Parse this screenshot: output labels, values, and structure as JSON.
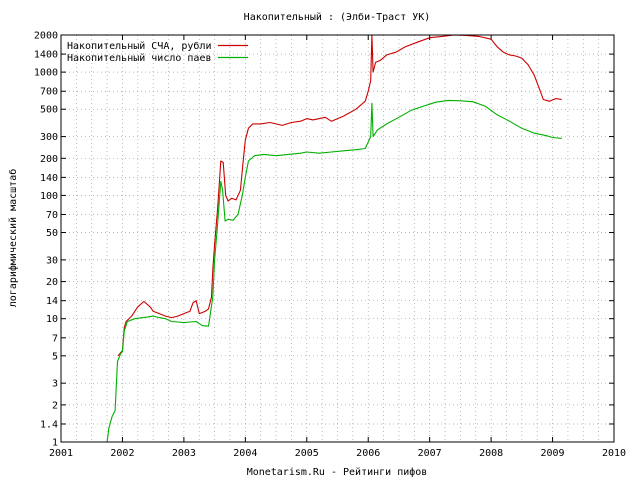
{
  "chart_data": {
    "type": "line",
    "title": "Накопительный : (Элби-Траст УК)",
    "xlabel": "Monetarism.Ru - Рейтинги пифов",
    "ylabel": "логарифмический масштаб",
    "y_scale": "log",
    "xlim": [
      2001,
      2010
    ],
    "ylim": [
      1,
      2000
    ],
    "grid": true,
    "legend_position": "top-left",
    "x_ticks": [
      "2001",
      "2002",
      "2003",
      "2004",
      "2005",
      "2006",
      "2007",
      "2008",
      "2009",
      "2010"
    ],
    "y_ticks": [
      1,
      1.4,
      2,
      3,
      5,
      7,
      10,
      14,
      20,
      30,
      50,
      70,
      100,
      140,
      200,
      300,
      500,
      700,
      1000,
      1400,
      2000
    ],
    "series": [
      {
        "name": "Накопительный СЧА, рубли",
        "color": "#cc0000",
        "points": [
          [
            2001.93,
            5
          ],
          [
            2001.97,
            5.3
          ],
          [
            2002.0,
            5.5
          ],
          [
            2002.03,
            8.5
          ],
          [
            2002.06,
            9.5
          ],
          [
            2002.15,
            10.5
          ],
          [
            2002.25,
            12.5
          ],
          [
            2002.35,
            13.8
          ],
          [
            2002.45,
            12.5
          ],
          [
            2002.5,
            11.5
          ],
          [
            2002.6,
            11
          ],
          [
            2002.7,
            10.5
          ],
          [
            2002.8,
            10.2
          ],
          [
            2002.9,
            10.5
          ],
          [
            2003.0,
            11
          ],
          [
            2003.1,
            11.5
          ],
          [
            2003.15,
            13.5
          ],
          [
            2003.2,
            14
          ],
          [
            2003.25,
            11
          ],
          [
            2003.35,
            11.5
          ],
          [
            2003.4,
            12
          ],
          [
            2003.45,
            15
          ],
          [
            2003.47,
            25
          ],
          [
            2003.5,
            40
          ],
          [
            2003.55,
            80
          ],
          [
            2003.6,
            190
          ],
          [
            2003.64,
            185
          ],
          [
            2003.68,
            100
          ],
          [
            2003.72,
            90
          ],
          [
            2003.78,
            95
          ],
          [
            2003.85,
            92
          ],
          [
            2003.92,
            110
          ],
          [
            2003.96,
            180
          ],
          [
            2004.0,
            280
          ],
          [
            2004.05,
            350
          ],
          [
            2004.12,
            380
          ],
          [
            2004.25,
            380
          ],
          [
            2004.4,
            390
          ],
          [
            2004.6,
            370
          ],
          [
            2004.75,
            390
          ],
          [
            2004.9,
            400
          ],
          [
            2005.0,
            420
          ],
          [
            2005.1,
            410
          ],
          [
            2005.3,
            430
          ],
          [
            2005.4,
            400
          ],
          [
            2005.6,
            440
          ],
          [
            2005.8,
            500
          ],
          [
            2005.95,
            580
          ],
          [
            2006.0,
            700
          ],
          [
            2006.04,
            850
          ],
          [
            2006.06,
            2000
          ],
          [
            2006.08,
            1000
          ],
          [
            2006.12,
            1200
          ],
          [
            2006.2,
            1250
          ],
          [
            2006.3,
            1380
          ],
          [
            2006.45,
            1450
          ],
          [
            2006.6,
            1600
          ],
          [
            2006.8,
            1750
          ],
          [
            2007.0,
            1900
          ],
          [
            2007.2,
            1950
          ],
          [
            2007.4,
            2000
          ],
          [
            2007.6,
            1980
          ],
          [
            2007.8,
            1950
          ],
          [
            2008.0,
            1850
          ],
          [
            2008.1,
            1600
          ],
          [
            2008.2,
            1450
          ],
          [
            2008.3,
            1380
          ],
          [
            2008.4,
            1350
          ],
          [
            2008.5,
            1300
          ],
          [
            2008.6,
            1150
          ],
          [
            2008.7,
            950
          ],
          [
            2008.8,
            700
          ],
          [
            2008.85,
            600
          ],
          [
            2008.95,
            580
          ],
          [
            2009.05,
            610
          ],
          [
            2009.15,
            600
          ]
        ]
      },
      {
        "name": "Накопительный число паев",
        "color": "#00b000",
        "points": [
          [
            2001.75,
            1
          ],
          [
            2001.78,
            1.3
          ],
          [
            2001.83,
            1.6
          ],
          [
            2001.88,
            1.8
          ],
          [
            2001.92,
            4.5
          ],
          [
            2001.97,
            5.2
          ],
          [
            2002.0,
            5.4
          ],
          [
            2002.03,
            8
          ],
          [
            2002.08,
            9.5
          ],
          [
            2002.2,
            10
          ],
          [
            2002.4,
            10.3
          ],
          [
            2002.5,
            10.5
          ],
          [
            2002.6,
            10.2
          ],
          [
            2002.7,
            10
          ],
          [
            2002.8,
            9.5
          ],
          [
            2002.9,
            9.4
          ],
          [
            2003.0,
            9.3
          ],
          [
            2003.1,
            9.4
          ],
          [
            2003.2,
            9.5
          ],
          [
            2003.3,
            8.8
          ],
          [
            2003.4,
            8.7
          ],
          [
            2003.47,
            15
          ],
          [
            2003.5,
            30
          ],
          [
            2003.55,
            60
          ],
          [
            2003.6,
            130
          ],
          [
            2003.63,
            110
          ],
          [
            2003.67,
            62
          ],
          [
            2003.72,
            64
          ],
          [
            2003.8,
            63
          ],
          [
            2003.88,
            70
          ],
          [
            2003.95,
            100
          ],
          [
            2004.0,
            140
          ],
          [
            2004.05,
            190
          ],
          [
            2004.15,
            210
          ],
          [
            2004.3,
            215
          ],
          [
            2004.5,
            210
          ],
          [
            2004.7,
            215
          ],
          [
            2004.9,
            220
          ],
          [
            2005.0,
            225
          ],
          [
            2005.2,
            220
          ],
          [
            2005.4,
            225
          ],
          [
            2005.6,
            230
          ],
          [
            2005.8,
            235
          ],
          [
            2005.95,
            240
          ],
          [
            2006.04,
            300
          ],
          [
            2006.06,
            560
          ],
          [
            2006.08,
            300
          ],
          [
            2006.15,
            340
          ],
          [
            2006.3,
            380
          ],
          [
            2006.5,
            430
          ],
          [
            2006.7,
            490
          ],
          [
            2006.9,
            530
          ],
          [
            2007.1,
            570
          ],
          [
            2007.3,
            590
          ],
          [
            2007.5,
            585
          ],
          [
            2007.7,
            575
          ],
          [
            2007.9,
            530
          ],
          [
            2008.1,
            450
          ],
          [
            2008.3,
            400
          ],
          [
            2008.5,
            350
          ],
          [
            2008.7,
            320
          ],
          [
            2008.9,
            305
          ],
          [
            2009.0,
            295
          ],
          [
            2009.15,
            290
          ]
        ]
      }
    ]
  }
}
